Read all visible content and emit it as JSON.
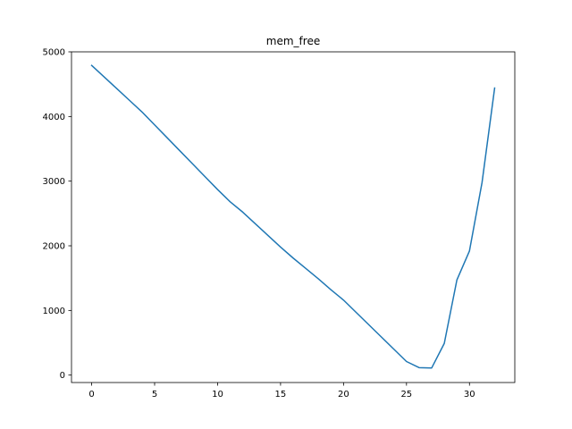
{
  "chart_data": {
    "type": "line",
    "title": "mem_free",
    "xlabel": "",
    "ylabel": "",
    "xlim": [
      -1.6,
      33.6
    ],
    "ylim": [
      -115,
      5000
    ],
    "grid": false,
    "x_ticks": [
      0,
      5,
      10,
      15,
      20,
      25,
      30
    ],
    "y_ticks": [
      0,
      1000,
      2000,
      3000,
      4000,
      5000
    ],
    "line_color": "#1f77b4",
    "series": [
      {
        "x": [
          0,
          1,
          2,
          3,
          4,
          5,
          6,
          7,
          8,
          9,
          10,
          11,
          12,
          13,
          14,
          15,
          16,
          17,
          18,
          19,
          20,
          21,
          22,
          23,
          24,
          25,
          26,
          27,
          28,
          29,
          30,
          31,
          32
        ],
        "values": [
          4790,
          4610,
          4430,
          4250,
          4070,
          3870,
          3670,
          3470,
          3270,
          3070,
          2870,
          2680,
          2520,
          2340,
          2160,
          1980,
          1810,
          1650,
          1490,
          1320,
          1160,
          970,
          780,
          590,
          400,
          210,
          115,
          110,
          490,
          1470,
          1920,
          2980,
          4440
        ]
      }
    ]
  }
}
